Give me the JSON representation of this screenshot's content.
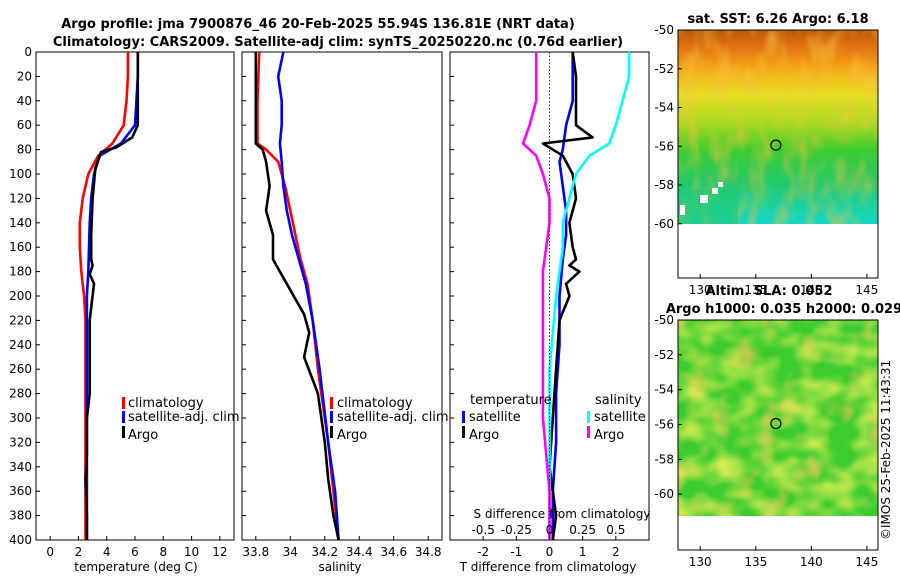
{
  "title": {
    "line1": "Argo profile: jma 7900876_46 20-Feb-2025 55.94S 136.81E (NRT data)",
    "line2": "Climatology: CARS2009. Satellite-adj clim: synTS_20250220.nc (0.76d earlier)"
  },
  "stamp": "©IMOS 25-Feb-2025 11:43:31",
  "colors": {
    "climatology": "#ff0000",
    "satellite": "#0000ff",
    "argo": "#000000",
    "sat_salinity": "#00ffff",
    "argo_salinity": "#ff00ff"
  },
  "chart_data": [
    {
      "id": "temperature",
      "type": "line",
      "xlabel": "temperature (deg C)",
      "ylabel": "",
      "xlim": [
        -1,
        13
      ],
      "ylim": [
        400,
        0
      ],
      "xticks": [
        "0",
        "2",
        "4",
        "6",
        "8",
        "10",
        "12"
      ],
      "xtick_values": [
        0,
        2,
        4,
        6,
        8,
        10,
        12
      ],
      "yticks": [
        "0",
        "20",
        "40",
        "60",
        "80",
        "100",
        "120",
        "140",
        "160",
        "180",
        "200",
        "220",
        "240",
        "260",
        "280",
        "300",
        "320",
        "340",
        "360",
        "380",
        "400"
      ],
      "legend": [
        "climatology",
        "satellite-adj. clim",
        "Argo"
      ],
      "legend_loc": "center-right",
      "series": [
        {
          "name": "climatology",
          "color": "#ff0000",
          "x": [
            5.5,
            5.5,
            5.4,
            5.2,
            4.4,
            3.4,
            2.7,
            2.3,
            2.1,
            2.1,
            2.2,
            2.4,
            2.5,
            2.5,
            2.5
          ],
          "y": [
            0,
            20,
            40,
            60,
            75,
            85,
            100,
            120,
            140,
            160,
            180,
            200,
            220,
            260,
            400
          ]
        },
        {
          "name": "satellite-adj. clim",
          "color": "#0000ff",
          "x": [
            6.2,
            6.2,
            6.1,
            6.0,
            5.0,
            3.5,
            3.1,
            2.9,
            2.8,
            2.75,
            2.7,
            2.6,
            2.6,
            2.6,
            2.6
          ],
          "y": [
            0,
            20,
            40,
            60,
            75,
            85,
            100,
            120,
            140,
            160,
            180,
            200,
            240,
            300,
            400
          ]
        },
        {
          "name": "Argo",
          "color": "#000000",
          "x": [
            6.2,
            6.2,
            6.2,
            6.2,
            5.8,
            4.7,
            3.6,
            3.2,
            3.0,
            2.9,
            2.9,
            3.0,
            2.8,
            3.1,
            2.8,
            2.8,
            2.6,
            2.6,
            2.5,
            2.6,
            2.6
          ],
          "y": [
            0,
            20,
            40,
            60,
            70,
            78,
            82,
            95,
            120,
            150,
            170,
            175,
            182,
            190,
            220,
            280,
            300,
            330,
            350,
            380,
            400
          ]
        }
      ]
    },
    {
      "id": "salinity",
      "type": "line",
      "xlabel": "salinity",
      "xlim": [
        33.72,
        34.88
      ],
      "ylim": [
        400,
        0
      ],
      "xticks": [
        "33.8",
        "34",
        "34.2",
        "34.4",
        "34.6",
        "34.8"
      ],
      "xtick_values": [
        33.8,
        34.0,
        34.2,
        34.4,
        34.6,
        34.8
      ],
      "legend": [
        "climatology",
        "satellite-adj. clim",
        "Argo"
      ],
      "legend_loc": "center-right",
      "series": [
        {
          "name": "climatology",
          "color": "#ff0000",
          "x": [
            33.82,
            33.81,
            33.81,
            33.81,
            33.86,
            33.93,
            33.97,
            34.0,
            34.03,
            34.06,
            34.1,
            34.13,
            34.16,
            34.22,
            34.25,
            34.28
          ],
          "y": [
            0,
            40,
            60,
            75,
            80,
            90,
            110,
            130,
            150,
            170,
            190,
            220,
            260,
            320,
            360,
            400
          ]
        },
        {
          "name": "satellite-adj. clim",
          "color": "#0000ff",
          "x": [
            33.96,
            33.93,
            33.95,
            33.95,
            33.94,
            33.95,
            33.96,
            33.98,
            34.01,
            34.05,
            34.09,
            34.13,
            34.17,
            34.22,
            34.26,
            34.28
          ],
          "y": [
            0,
            20,
            40,
            60,
            75,
            90,
            110,
            130,
            150,
            170,
            190,
            220,
            260,
            320,
            360,
            400
          ]
        },
        {
          "name": "Argo",
          "color": "#000000",
          "x": [
            33.8,
            33.8,
            33.8,
            33.8,
            33.84,
            33.86,
            33.88,
            33.86,
            33.9,
            33.9,
            33.94,
            33.98,
            34.02,
            34.08,
            34.11,
            34.08,
            34.16,
            34.2,
            34.22,
            34.25,
            34.28
          ],
          "y": [
            0,
            40,
            60,
            75,
            80,
            90,
            110,
            130,
            150,
            170,
            180,
            190,
            200,
            215,
            230,
            250,
            280,
            320,
            350,
            380,
            400
          ]
        }
      ]
    },
    {
      "id": "difference",
      "type": "line",
      "xlabel": "T difference from climatology",
      "top_label": "S difference from climatology",
      "xlim": [
        -3,
        3
      ],
      "ylim": [
        400,
        0
      ],
      "xticks": [
        "-2",
        "-1",
        "0",
        "1",
        "2"
      ],
      "xtick_values": [
        -2,
        -1,
        0,
        1,
        2
      ],
      "s_xticks": [
        "-0.5",
        "-0.25",
        "0",
        "0.25",
        "0.5"
      ],
      "s_xtick_values": [
        -0.5,
        -0.25,
        0,
        0.25,
        0.5
      ],
      "legend_t_title": "temperature",
      "legend_s_title": "salinity",
      "legend": [
        "satellite",
        "Argo",
        "satellite",
        "Argo"
      ],
      "series": [
        {
          "name": "satellite (T)",
          "color": "#0000ff",
          "x": [
            0.7,
            0.7,
            0.7,
            0.5,
            0.4,
            0.3,
            0.4,
            0.5,
            0.5,
            0.4,
            0.3,
            0.3,
            0.2,
            0.2,
            0.1,
            0.1,
            0.1
          ],
          "y": [
            0,
            20,
            40,
            60,
            80,
            90,
            110,
            130,
            150,
            170,
            200,
            240,
            280,
            320,
            360,
            380,
            400
          ]
        },
        {
          "name": "Argo (T)",
          "color": "#000000",
          "x": [
            0.7,
            0.8,
            0.8,
            0.8,
            1.3,
            -0.2,
            0.4,
            0.7,
            0.8,
            0.6,
            0.7,
            0.8,
            0.6,
            0.9,
            0.5,
            0.6,
            0.3,
            0.2,
            0.1,
            0.0,
            0.2,
            0.1
          ],
          "y": [
            0,
            20,
            40,
            60,
            70,
            75,
            85,
            100,
            120,
            140,
            160,
            170,
            175,
            180,
            190,
            200,
            220,
            260,
            300,
            340,
            380,
            400
          ]
        },
        {
          "name": "satellite (S)",
          "color": "#00ffff",
          "x": [
            0.6,
            0.6,
            0.55,
            0.5,
            0.45,
            0.3,
            0.2,
            0.15,
            0.1,
            0.1,
            0.05,
            0.0,
            0.0,
            0.0
          ],
          "y": [
            0,
            20,
            40,
            60,
            75,
            85,
            100,
            120,
            140,
            160,
            200,
            260,
            340,
            400
          ]
        },
        {
          "name": "Argo (S)",
          "color": "#ff00ff",
          "x": [
            -0.1,
            -0.1,
            -0.1,
            -0.15,
            -0.2,
            -0.1,
            -0.05,
            0.0,
            0.0,
            -0.05,
            -0.05,
            -0.05,
            0.0,
            0.0
          ],
          "y": [
            0,
            20,
            40,
            60,
            75,
            85,
            100,
            120,
            140,
            180,
            240,
            300,
            360,
            400
          ]
        }
      ]
    },
    {
      "id": "sst_map",
      "type": "heatmap",
      "title": "sat. SST: 6.26 Argo: 6.18",
      "xticks": [
        "130",
        "135",
        "140",
        "145"
      ],
      "xtick_values": [
        130,
        135,
        140,
        145
      ],
      "yticks": [
        "-50",
        "-52",
        "-54",
        "-56",
        "-58",
        "-60"
      ],
      "ytick_values": [
        -50,
        -52,
        -54,
        -56,
        -58,
        -60
      ],
      "xlim": [
        128,
        146
      ],
      "ylim": [
        -62.8,
        -50
      ],
      "data_ylim": [
        -60,
        -50
      ],
      "marker": {
        "lon": 136.81,
        "lat": -55.94
      }
    },
    {
      "id": "sla_map",
      "type": "heatmap",
      "title": "Altim. SLA: 0.052",
      "title2": "Argo h1000: 0.035 h2000: 0.029",
      "xticks": [
        "130",
        "135",
        "140",
        "145"
      ],
      "xtick_values": [
        130,
        135,
        140,
        145
      ],
      "yticks": [
        "-50",
        "-52",
        "-54",
        "-56",
        "-58",
        "-60"
      ],
      "ytick_values": [
        -50,
        -52,
        -54,
        -56,
        -58,
        -60
      ],
      "xlim": [
        128,
        146
      ],
      "ylim": [
        -63.2,
        -50
      ],
      "data_ylim": [
        -60,
        -50
      ],
      "marker": {
        "lon": 136.81,
        "lat": -55.94
      }
    }
  ]
}
